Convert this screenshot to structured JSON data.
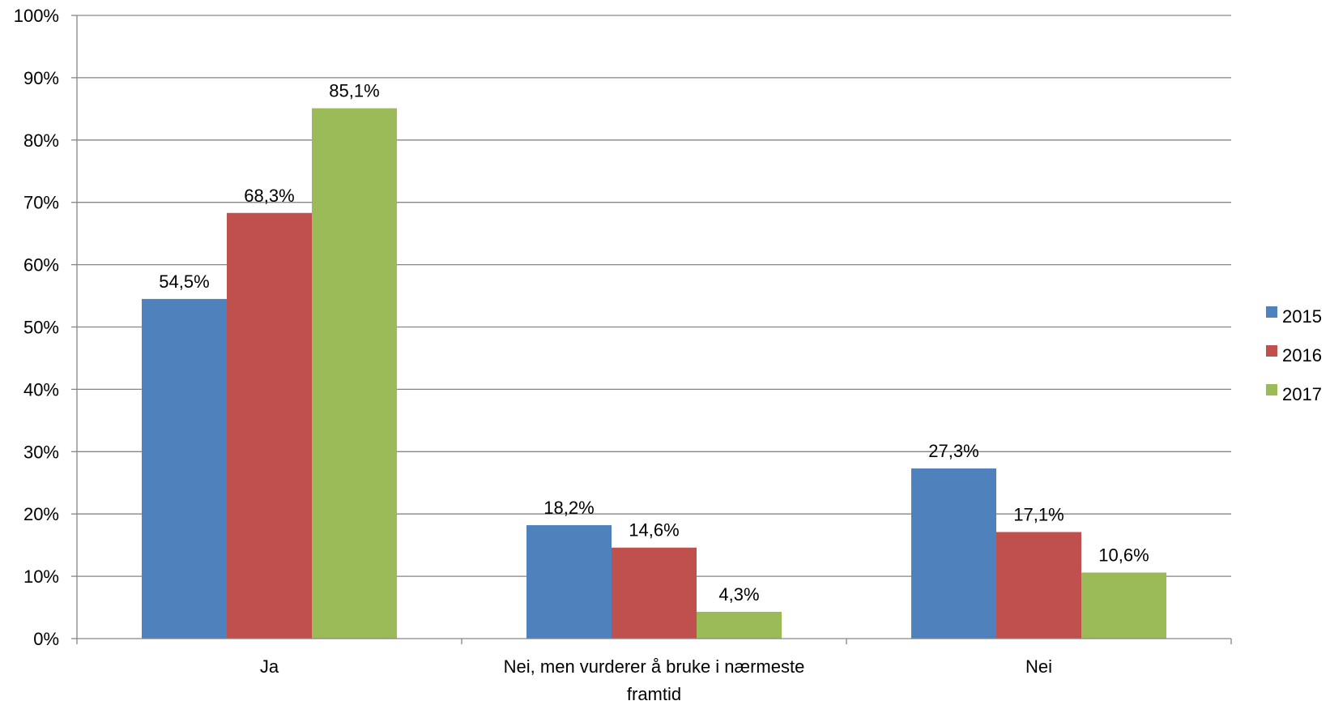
{
  "chart_data": {
    "type": "bar",
    "categories": [
      "Ja",
      "Nei, men vurderer å bruke i nærmeste framtid",
      "Nei"
    ],
    "category_lines": [
      [
        "Ja"
      ],
      [
        "Nei, men vurderer å bruke i nærmeste",
        "framtid"
      ],
      [
        "Nei"
      ]
    ],
    "series": [
      {
        "name": "2015",
        "color": "#4F81BD",
        "values": [
          54.5,
          18.2,
          27.3
        ],
        "labels": [
          "54,5%",
          "18,2%",
          "27,3%"
        ]
      },
      {
        "name": "2016",
        "color": "#C0504D",
        "values": [
          68.3,
          14.6,
          17.1
        ],
        "labels": [
          "68,3%",
          "14,6%",
          "17,1%"
        ]
      },
      {
        "name": "2017",
        "color": "#9BBB59",
        "values": [
          85.1,
          4.3,
          10.6
        ],
        "labels": [
          "85,1%",
          "4,3%",
          "10,6%"
        ]
      }
    ],
    "title": "",
    "xlabel": "",
    "ylabel": "",
    "ylim": [
      0,
      100
    ],
    "yticks": [
      0,
      10,
      20,
      30,
      40,
      50,
      60,
      70,
      80,
      90,
      100
    ],
    "ytick_labels": [
      "0%",
      "10%",
      "20%",
      "30%",
      "40%",
      "50%",
      "60%",
      "70%",
      "80%",
      "90%",
      "100%"
    ],
    "grid": true,
    "legend_position": "right"
  }
}
